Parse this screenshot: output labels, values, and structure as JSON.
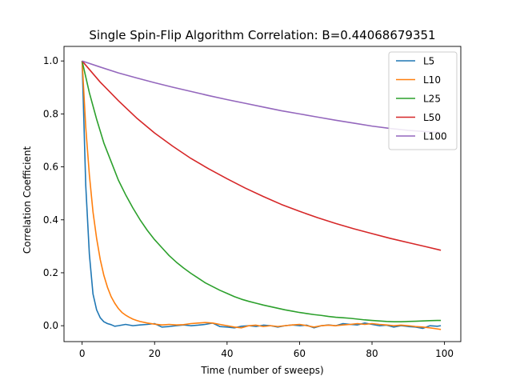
{
  "chart_data": {
    "type": "line",
    "title": "Single Spin-Flip Algorithm Correlation: B=0.44068679351",
    "xlabel": "Time (number of sweeps)",
    "ylabel": "Correlation Coefficient",
    "xlim": [
      -5,
      104.5
    ],
    "ylim": [
      -0.06,
      1.055
    ],
    "xticks": [
      0,
      20,
      40,
      60,
      80,
      100
    ],
    "xtick_labels": [
      "0",
      "20",
      "40",
      "60",
      "80",
      "100"
    ],
    "yticks": [
      0.0,
      0.2,
      0.4,
      0.6,
      0.8,
      1.0
    ],
    "ytick_labels": [
      "0.0",
      "0.2",
      "0.4",
      "0.6",
      "0.8",
      "1.0"
    ],
    "grid": false,
    "legend_position": "top-right",
    "series": [
      {
        "name": "L5",
        "color": "#1f77b4",
        "x": [
          0,
          1,
          2,
          3,
          4,
          5,
          6,
          7,
          8,
          9,
          10,
          12,
          14,
          16,
          18,
          20,
          22,
          24,
          26,
          28,
          30,
          32,
          34,
          36,
          38,
          40,
          42,
          44,
          46,
          48,
          50,
          52,
          54,
          56,
          58,
          60,
          62,
          64,
          66,
          68,
          70,
          72,
          74,
          76,
          78,
          80,
          82,
          84,
          86,
          88,
          90,
          92,
          94,
          96,
          98,
          99
        ],
        "y": [
          1.0,
          0.53,
          0.27,
          0.12,
          0.06,
          0.03,
          0.015,
          0.008,
          0.004,
          -0.002,
          0.0,
          0.005,
          0.0,
          0.003,
          0.005,
          0.008,
          -0.005,
          -0.003,
          0.0,
          0.003,
          0.0,
          0.002,
          0.005,
          0.01,
          -0.003,
          -0.005,
          -0.008,
          -0.002,
          0.0,
          -0.003,
          0.002,
          0.0,
          -0.005,
          0.0,
          0.003,
          0.0,
          0.002,
          -0.008,
          0.0,
          0.003,
          0.0,
          0.008,
          0.005,
          0.003,
          0.01,
          0.005,
          0.0,
          0.002,
          -0.005,
          0.0,
          -0.003,
          -0.005,
          -0.01,
          0.0,
          -0.002,
          0.0
        ]
      },
      {
        "name": "L10",
        "color": "#ff7f0e",
        "x": [
          0,
          1,
          2,
          3,
          4,
          5,
          6,
          7,
          8,
          9,
          10,
          11,
          12,
          13,
          14,
          15,
          16,
          18,
          20,
          22,
          24,
          26,
          28,
          30,
          32,
          34,
          36,
          38,
          40,
          42,
          44,
          46,
          48,
          50,
          52,
          54,
          56,
          58,
          60,
          62,
          64,
          66,
          68,
          70,
          72,
          74,
          76,
          78,
          80,
          82,
          84,
          86,
          88,
          90,
          92,
          94,
          96,
          98,
          99
        ],
        "y": [
          1.0,
          0.75,
          0.57,
          0.43,
          0.33,
          0.25,
          0.19,
          0.145,
          0.11,
          0.085,
          0.065,
          0.05,
          0.04,
          0.032,
          0.025,
          0.02,
          0.016,
          0.01,
          0.006,
          0.003,
          0.005,
          0.003,
          0.004,
          0.008,
          0.01,
          0.012,
          0.01,
          0.005,
          0.0,
          -0.005,
          -0.008,
          0.0,
          0.002,
          -0.003,
          0.0,
          -0.003,
          0.0,
          0.003,
          0.005,
          0.0,
          -0.005,
          0.0,
          0.002,
          0.0,
          0.003,
          0.005,
          0.008,
          0.005,
          0.008,
          0.005,
          0.003,
          0.0,
          0.002,
          0.0,
          -0.003,
          -0.005,
          -0.008,
          -0.012,
          -0.014
        ]
      },
      {
        "name": "L25",
        "color": "#2ca02c",
        "x": [
          0,
          2,
          4,
          6,
          8,
          10,
          12,
          14,
          16,
          18,
          20,
          22,
          24,
          26,
          28,
          30,
          32,
          34,
          36,
          38,
          40,
          42,
          44,
          46,
          48,
          50,
          52,
          54,
          56,
          58,
          60,
          62,
          64,
          66,
          68,
          70,
          72,
          74,
          76,
          78,
          80,
          82,
          84,
          86,
          88,
          90,
          92,
          94,
          96,
          98,
          99
        ],
        "y": [
          1.0,
          0.88,
          0.78,
          0.69,
          0.62,
          0.55,
          0.495,
          0.445,
          0.4,
          0.36,
          0.325,
          0.295,
          0.265,
          0.24,
          0.218,
          0.198,
          0.18,
          0.162,
          0.148,
          0.134,
          0.122,
          0.11,
          0.1,
          0.092,
          0.085,
          0.078,
          0.072,
          0.066,
          0.06,
          0.055,
          0.05,
          0.046,
          0.042,
          0.039,
          0.035,
          0.032,
          0.03,
          0.028,
          0.025,
          0.022,
          0.02,
          0.018,
          0.016,
          0.015,
          0.015,
          0.016,
          0.017,
          0.018,
          0.019,
          0.02,
          0.02
        ]
      },
      {
        "name": "L50",
        "color": "#d62728",
        "x": [
          0,
          5,
          10,
          15,
          20,
          25,
          30,
          35,
          40,
          45,
          50,
          55,
          60,
          65,
          70,
          75,
          80,
          85,
          90,
          95,
          99
        ],
        "y": [
          1.0,
          0.92,
          0.85,
          0.785,
          0.728,
          0.678,
          0.632,
          0.592,
          0.555,
          0.52,
          0.488,
          0.458,
          0.432,
          0.408,
          0.386,
          0.366,
          0.348,
          0.33,
          0.314,
          0.298,
          0.285
        ]
      },
      {
        "name": "L100",
        "color": "#9467bd",
        "x": [
          0,
          5,
          10,
          15,
          20,
          25,
          30,
          35,
          40,
          45,
          50,
          55,
          60,
          65,
          70,
          75,
          80,
          85,
          90,
          95,
          99
        ],
        "y": [
          1.0,
          0.977,
          0.955,
          0.936,
          0.918,
          0.901,
          0.885,
          0.869,
          0.854,
          0.84,
          0.826,
          0.812,
          0.8,
          0.788,
          0.776,
          0.765,
          0.754,
          0.745,
          0.738,
          0.733,
          0.73
        ]
      }
    ]
  }
}
